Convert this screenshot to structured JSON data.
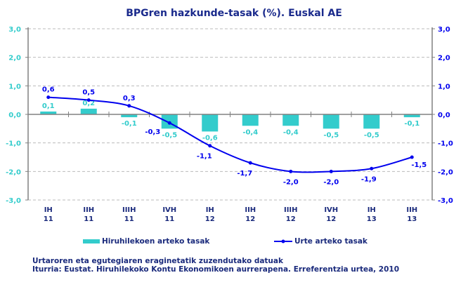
{
  "chart_data": {
    "type": "bar+line",
    "title": "BPGren hazkunde-tasak (%). Euskal AE",
    "categories": [
      [
        "IH",
        "11"
      ],
      [
        "IIH",
        "11"
      ],
      [
        "IIIH",
        "11"
      ],
      [
        "IVH",
        "11"
      ],
      [
        "IH",
        "12"
      ],
      [
        "IIH",
        "12"
      ],
      [
        "IIIH",
        "12"
      ],
      [
        "IVH",
        "12"
      ],
      [
        "IH",
        "13"
      ],
      [
        "IIH",
        "13"
      ]
    ],
    "series": [
      {
        "name": "Hiruhilekoen arteko tasak",
        "kind": "bar",
        "axis": "left",
        "color": "#33cccc",
        "values": [
          0.1,
          0.2,
          -0.1,
          -0.5,
          -0.6,
          -0.4,
          -0.4,
          -0.5,
          -0.5,
          -0.1
        ],
        "labels": [
          "0,1",
          "0,2",
          "-0,1",
          "-0,5",
          "-0,6",
          "-0,4",
          "-0,4",
          "-0,5",
          "-0,5",
          "-0,1"
        ]
      },
      {
        "name": "Urte arteko tasak",
        "kind": "line",
        "axis": "right",
        "color": "#0000ee",
        "values": [
          0.6,
          0.5,
          0.3,
          -0.3,
          -1.1,
          -1.7,
          -2.0,
          -2.0,
          -1.9,
          -1.5
        ],
        "labels": [
          "0,6",
          "0,5",
          "0,3",
          "-0,3",
          "-1,1",
          "-1,7",
          "-2,0",
          "-2,0",
          "-1,9",
          "-1,5"
        ]
      }
    ],
    "ylim": [
      -3,
      3
    ],
    "yticks": [
      3,
      2,
      1,
      0,
      -1,
      -2,
      -3
    ],
    "ytick_labels": [
      "3,0",
      "2,0",
      "1,0",
      "0,0",
      "-1,0",
      "-2,0",
      "-3,0"
    ],
    "grid": "horizontal dashed",
    "legend": "bottom"
  },
  "notes": {
    "line1": "Urtaroren eta egutegiaren eraginetatik zuzendutako datuak",
    "line2": "Iturria: Eustat. Hiruhilekoko Kontu Ekonomikoen aurrerapena. Erreferentzia urtea, 2010"
  }
}
